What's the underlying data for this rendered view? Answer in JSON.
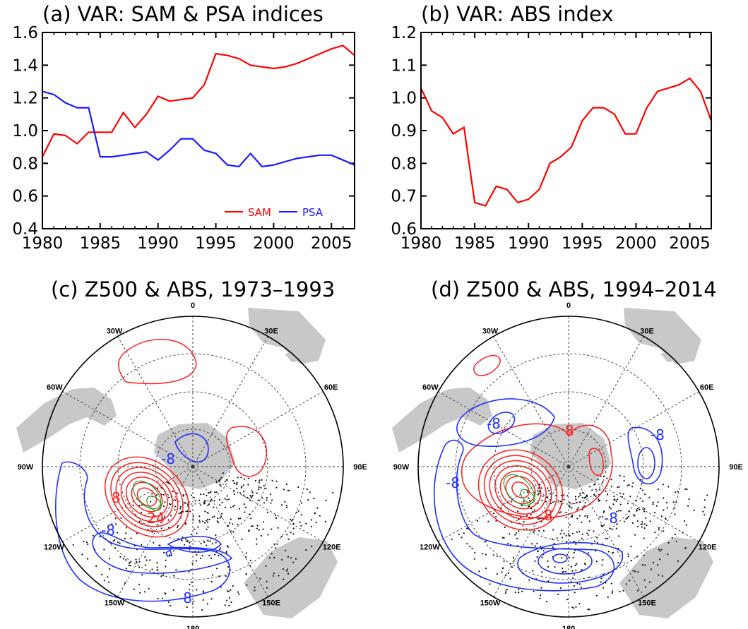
{
  "colors": {
    "sam": "#ff0000",
    "psa": "#1a1aff",
    "abs": "#ff0000",
    "positive_contour": "#ff2020",
    "negative_contour": "#2030ff",
    "significance_contour": "#2a9a2a",
    "land": "#c8c8c8"
  },
  "chart_data": [
    {
      "type": "line",
      "title": "(a) VAR: SAM & PSA indices",
      "x": [
        1980,
        1981,
        1982,
        1983,
        1984,
        1985,
        1986,
        1987,
        1988,
        1989,
        1990,
        1991,
        1992,
        1993,
        1994,
        1995,
        1996,
        1997,
        1998,
        1999,
        2000,
        2001,
        2002,
        2003,
        2004,
        2005,
        2006,
        2007
      ],
      "series": [
        {
          "name": "SAM",
          "values": [
            0.84,
            0.98,
            0.97,
            0.92,
            0.99,
            0.99,
            0.99,
            1.11,
            1.02,
            1.1,
            1.21,
            1.18,
            1.19,
            1.2,
            1.28,
            1.47,
            1.46,
            1.44,
            1.4,
            1.39,
            1.38,
            1.39,
            1.41,
            1.44,
            1.47,
            1.5,
            1.52,
            1.46
          ]
        },
        {
          "name": "PSA",
          "values": [
            1.24,
            1.22,
            1.17,
            1.14,
            1.14,
            0.84,
            0.84,
            0.85,
            0.86,
            0.87,
            0.82,
            0.88,
            0.95,
            0.95,
            0.88,
            0.86,
            0.79,
            0.78,
            0.86,
            0.78,
            0.79,
            0.81,
            0.83,
            0.84,
            0.85,
            0.85,
            0.82,
            0.79
          ]
        }
      ],
      "xlim": [
        1980,
        2007
      ],
      "ylim": [
        0.4,
        1.6
      ],
      "xticks": [
        1980,
        1985,
        1990,
        1995,
        2000,
        2005
      ],
      "yticks": [
        "0.4",
        "0.6",
        "0.8",
        "1.0",
        "1.2",
        "1.4",
        "1.6"
      ],
      "legend": "bottom-right"
    },
    {
      "type": "line",
      "title": "(b) VAR: ABS index",
      "x": [
        1980,
        1981,
        1982,
        1983,
        1984,
        1985,
        1986,
        1987,
        1988,
        1989,
        1990,
        1991,
        1992,
        1993,
        1994,
        1995,
        1996,
        1997,
        1998,
        1999,
        2000,
        2001,
        2002,
        2003,
        2004,
        2005,
        2006,
        2007
      ],
      "series": [
        {
          "values": [
            1.03,
            0.96,
            0.94,
            0.89,
            0.91,
            0.68,
            0.67,
            0.73,
            0.72,
            0.68,
            0.69,
            0.72,
            0.8,
            0.82,
            0.85,
            0.93,
            0.97,
            0.97,
            0.95,
            0.89,
            0.89,
            0.97,
            1.02,
            1.03,
            1.04,
            1.06,
            1.02,
            0.93
          ]
        }
      ],
      "xlim": [
        1980,
        2007
      ],
      "ylim": [
        0.6,
        1.2
      ],
      "xticks": [
        1980,
        1985,
        1990,
        1995,
        2000,
        2005
      ],
      "yticks": [
        "0.6",
        "0.7",
        "0.8",
        "0.9",
        "1.0",
        "1.1",
        "1.2"
      ]
    },
    {
      "type": "heatmap",
      "title": "(c) Z500 & ABS, 1973–1993",
      "longitude_labels": [
        "0",
        "30E",
        "60E",
        "90E",
        "120E",
        "150E",
        "180",
        "150W",
        "120W",
        "90W",
        "60W",
        "30W"
      ],
      "contour_labels": [
        "-8",
        "8",
        "24",
        "-8",
        "-8"
      ]
    },
    {
      "type": "heatmap",
      "title": "(d) Z500 & ABS, 1994–2014",
      "longitude_labels": [
        "0",
        "30E",
        "60E",
        "90E",
        "120E",
        "150E",
        "180",
        "150W",
        "120W",
        "90W",
        "60W",
        "30W"
      ],
      "contour_labels": [
        "-8",
        "8",
        "-8",
        "-8",
        "8",
        "-8"
      ]
    }
  ]
}
